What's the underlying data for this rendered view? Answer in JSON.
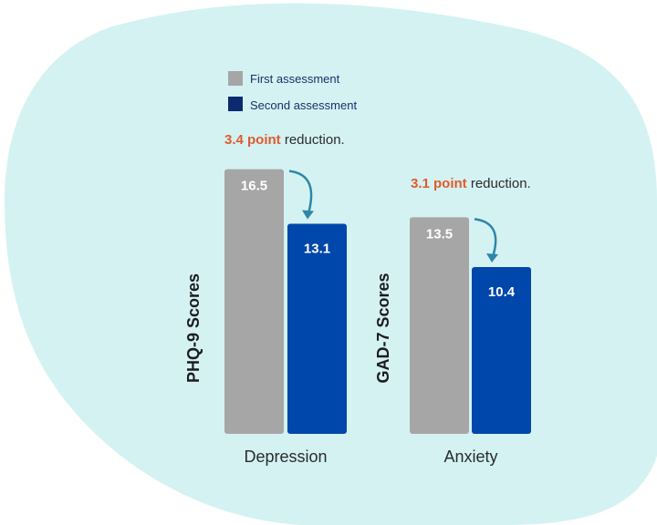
{
  "colors": {
    "background_blob": "#d4f2f2",
    "first_assessment": "#a6a6a6",
    "second_assessment": "#0047ab",
    "legend_second": "#0b2a6f",
    "highlight": "#e05a2b",
    "arrow": "#2e86a8"
  },
  "legend": {
    "items": [
      {
        "label": "First assessment",
        "color": "#a6a6a6"
      },
      {
        "label": "Second assessment",
        "color": "#0b2a6f"
      }
    ]
  },
  "notes": [
    {
      "highlight": "3.4 point",
      "rest": " reduction."
    },
    {
      "highlight": "3.1 point",
      "rest": " reduction."
    }
  ],
  "chart_data": [
    {
      "type": "bar",
      "categories": [
        "Depression"
      ],
      "ylabel": "PHQ-9  Scores",
      "ylim": [
        0,
        19
      ],
      "series": [
        {
          "name": "First assessment",
          "values": [
            16.5
          ]
        },
        {
          "name": "Second assessment",
          "values": [
            13.1
          ]
        }
      ],
      "value_labels": [
        "16.5",
        "13.1"
      ],
      "annotation": "3.4 point reduction."
    },
    {
      "type": "bar",
      "categories": [
        "Anxiety"
      ],
      "ylabel": "GAD-7  Scores",
      "ylim": [
        0,
        19
      ],
      "series": [
        {
          "name": "First assessment",
          "values": [
            13.5
          ]
        },
        {
          "name": "Second assessment",
          "values": [
            10.4
          ]
        }
      ],
      "value_labels": [
        "13.5",
        "10.4"
      ],
      "annotation": "3.1 point reduction."
    }
  ]
}
